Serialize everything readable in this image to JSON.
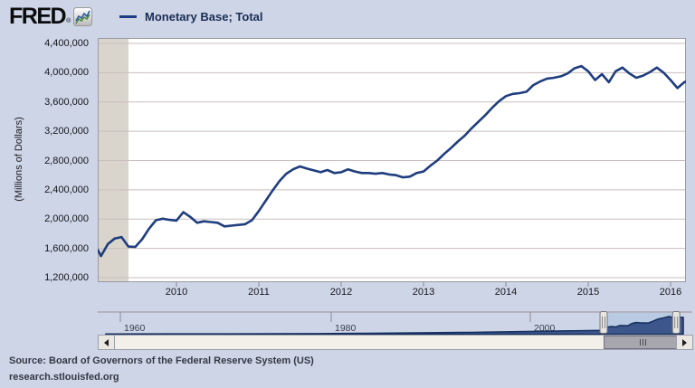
{
  "header": {
    "logo_text": "FRED",
    "logo_reg": "®",
    "logo_icon": "fred-sparkline-icon",
    "legend": {
      "label": "Monetary Base; Total",
      "line_color": "#1f3d7e"
    }
  },
  "chart_data": {
    "type": "line",
    "title": "Monetary Base; Total",
    "ylabel": "(Millions of Dollars)",
    "units": "Millions of Dollars",
    "grid": true,
    "line_color": "#1f3d7e",
    "background_color": "#cdd5e7",
    "plot_background": "#ffffff",
    "recession_band_color": "#d9d5cd",
    "ylim": [
      1200000,
      4400000
    ],
    "y_ticks": [
      "4,400,000",
      "4,000,000",
      "3,600,000",
      "3,200,000",
      "2,800,000",
      "2,400,000",
      "2,000,000",
      "1,600,000",
      "1,200,000"
    ],
    "x_ticks": [
      "2010",
      "2011",
      "2012",
      "2013",
      "2014",
      "2015",
      "2016"
    ],
    "recession_band": {
      "start_month_index": 0,
      "end_month_index": 5
    },
    "series": [
      {
        "name": "Monetary Base; Total",
        "start": "2009-01",
        "frequency": "monthly",
        "values": [
          1580000,
          1495000,
          1660000,
          1735000,
          1755000,
          1625000,
          1620000,
          1725000,
          1870000,
          1985000,
          2005000,
          1990000,
          1980000,
          2095000,
          2030000,
          1950000,
          1970000,
          1960000,
          1950000,
          1900000,
          1910000,
          1920000,
          1930000,
          1985000,
          2110000,
          2250000,
          2390000,
          2520000,
          2620000,
          2680000,
          2720000,
          2690000,
          2665000,
          2640000,
          2670000,
          2630000,
          2640000,
          2680000,
          2650000,
          2630000,
          2630000,
          2620000,
          2630000,
          2610000,
          2600000,
          2570000,
          2580000,
          2630000,
          2650000,
          2730000,
          2800000,
          2890000,
          2970000,
          3060000,
          3140000,
          3240000,
          3330000,
          3420000,
          3520000,
          3610000,
          3680000,
          3710000,
          3720000,
          3740000,
          3830000,
          3880000,
          3920000,
          3930000,
          3950000,
          3990000,
          4060000,
          4090000,
          4020000,
          3900000,
          3980000,
          3870000,
          4020000,
          4070000,
          3990000,
          3930000,
          3960000,
          4010000,
          4070000,
          4000000,
          3900000,
          3790000,
          3870000,
          3880000
        ]
      }
    ],
    "overview": {
      "x_ticks": [
        "1960",
        "1980",
        "2000"
      ],
      "range_years": [
        1959,
        2016.3
      ],
      "selection_years": [
        2008.4,
        2015.6
      ],
      "series": {
        "x": [
          1959,
          1965,
          1970,
          1975,
          1980,
          1985,
          1990,
          1995,
          2000,
          2003,
          2005,
          2007,
          2008.2,
          2008.6,
          2008.9,
          2009.2,
          2009.6,
          2010,
          2010.8,
          2011.2,
          2011.6,
          2012,
          2012.8,
          2013.2,
          2013.8,
          2014.3,
          2014.9,
          2015.2,
          2015.45,
          2015.7,
          2016,
          2016.3
        ],
        "values": [
          41000,
          53000,
          66000,
          95000,
          133000,
          187000,
          300000,
          427000,
          585000,
          700000,
          775000,
          825000,
          870000,
          1500000,
          1700000,
          1760000,
          1650000,
          2000000,
          1950000,
          2450000,
          2700000,
          2630000,
          2580000,
          2900000,
          3500000,
          3750000,
          4080000,
          3900000,
          4050000,
          4000000,
          3920000,
          3880000
        ]
      }
    }
  },
  "footer": {
    "source": "Source: Board of Governors of the Federal Reserve System (US)",
    "link": "research.stlouisfed.org"
  }
}
